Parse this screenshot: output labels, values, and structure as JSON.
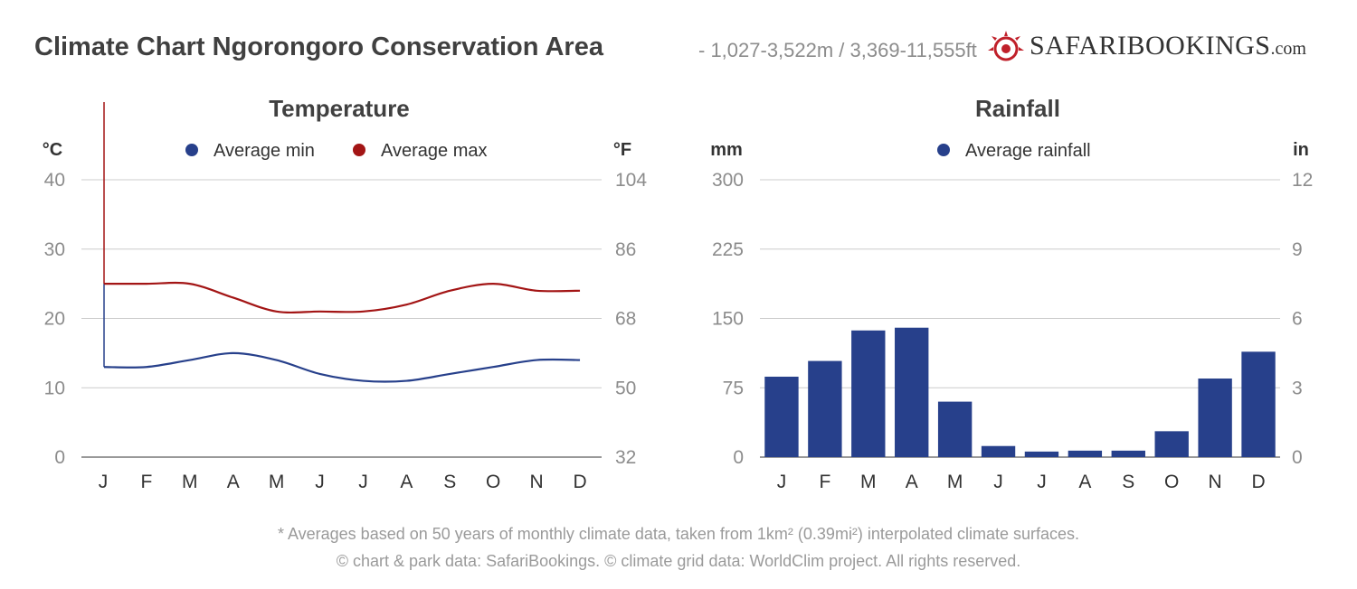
{
  "header": {
    "title": "Climate Chart Ngorongoro Conservation Area",
    "subtitle": "- 1,027-3,522m / 3,369-11,555ft",
    "logo": {
      "safari": "SAFARI",
      "bookings": "BOOKINGS",
      "com": ".com"
    }
  },
  "colors": {
    "min": "#27408b",
    "max": "#a31515",
    "bar": "#27408b",
    "grid": "#cccccc",
    "tick": "#8c8c8c"
  },
  "chart_data": [
    {
      "type": "line",
      "title": "Temperature",
      "y_left_label": "°C",
      "y_right_label": "°F",
      "categories": [
        "J",
        "F",
        "M",
        "A",
        "M",
        "J",
        "J",
        "A",
        "S",
        "O",
        "N",
        "D"
      ],
      "ylim": [
        0,
        40
      ],
      "y_left_ticks": [
        "0",
        "10",
        "20",
        "30",
        "40"
      ],
      "y_right_ticks": [
        "32",
        "50",
        "68",
        "86",
        "104"
      ],
      "grid": true,
      "legend_position": "top",
      "series": [
        {
          "name": "Average min",
          "values": [
            13,
            13,
            14,
            15,
            14,
            12,
            11,
            11,
            12,
            13,
            14,
            14
          ]
        },
        {
          "name": "Average max",
          "values": [
            25,
            25,
            25,
            23,
            21,
            21,
            21,
            22,
            24,
            25,
            24,
            24
          ]
        }
      ]
    },
    {
      "type": "bar",
      "title": "Rainfall",
      "y_left_label": "mm",
      "y_right_label": "in",
      "categories": [
        "J",
        "F",
        "M",
        "A",
        "M",
        "J",
        "J",
        "A",
        "S",
        "O",
        "N",
        "D"
      ],
      "ylim": [
        0,
        300
      ],
      "y_left_ticks": [
        "0",
        "75",
        "150",
        "225",
        "300"
      ],
      "y_right_ticks": [
        "0",
        "3",
        "6",
        "9",
        "12"
      ],
      "grid": true,
      "legend_position": "top",
      "series": [
        {
          "name": "Average rainfall",
          "values": [
            87,
            104,
            137,
            140,
            60,
            12,
            6,
            7,
            7,
            28,
            85,
            114
          ]
        }
      ]
    }
  ],
  "footer": {
    "footnote": "* Averages based on 50 years of monthly climate data, taken from 1km² (0.39mi²) interpolated climate surfaces.",
    "copyright": "© chart & park data: SafariBookings. © climate grid data: WorldClim project. All rights reserved."
  }
}
